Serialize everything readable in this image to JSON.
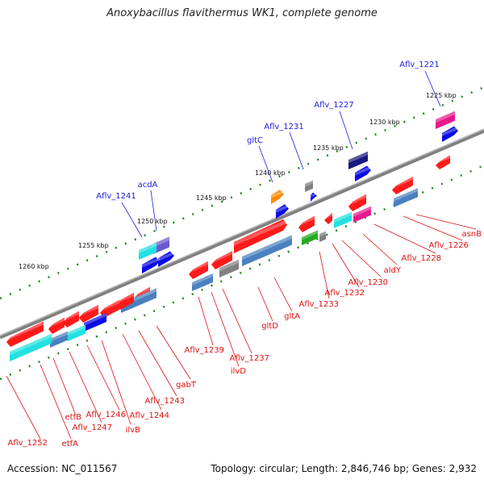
{
  "title": "Anoxybacillus flavithermus WK1, complete genome",
  "footer": {
    "accession": "Accession: NC_011567",
    "topology": "Topology: circular; Length: 2,846,746 bp; Genes: 2,932"
  },
  "kbp_labels": [
    {
      "text": "1225 kbp"
    },
    {
      "text": "1230 kbp"
    },
    {
      "text": "1235 kbp"
    },
    {
      "text": "1240 kbp"
    },
    {
      "text": "1245 kbp"
    },
    {
      "text": "1250 kbp"
    },
    {
      "text": "1255 kbp"
    },
    {
      "text": "1260 kbp"
    }
  ],
  "outer_genes": [
    {
      "name": "Aflv_1221",
      "color": "#1a1ae6"
    },
    {
      "name": "Aflv_1227",
      "color": "#1a1ae6"
    },
    {
      "name": "Aflv_1231",
      "color": "#1a1ae6"
    },
    {
      "name": "gltC",
      "color": "#1a1ae6"
    },
    {
      "name": "acdA",
      "color": "#1a1ae6"
    },
    {
      "name": "Aflv_1241",
      "color": "#1a1ae6"
    }
  ],
  "inner_genes": [
    {
      "name": "asnB"
    },
    {
      "name": "Aflv_1226"
    },
    {
      "name": "Aflv_1228"
    },
    {
      "name": "aldY"
    },
    {
      "name": "Aflv_1230"
    },
    {
      "name": "Aflv_1232"
    },
    {
      "name": "Aflv_1233"
    },
    {
      "name": "gltA"
    },
    {
      "name": "gltD"
    },
    {
      "name": "Aflv_1237"
    },
    {
      "name": "ilvD"
    },
    {
      "name": "Aflv_1239"
    },
    {
      "name": "gabT"
    },
    {
      "name": "Aflv_1243"
    },
    {
      "name": "Aflv_1244"
    },
    {
      "name": "ilvB"
    },
    {
      "name": "Aflv_1246"
    },
    {
      "name": "Aflv_1247"
    },
    {
      "name": "etfB"
    },
    {
      "name": "etfA"
    },
    {
      "name": "Aflv_1252"
    }
  ],
  "colors": {
    "backbone": "#808080",
    "tick_dots": "#228822",
    "gene_red": "#ff1a1a",
    "gene_blue": "#0a0ae6",
    "gene_navy": "#1a1a80",
    "gene_cyan": "#22e0e0",
    "gene_steel": "#4a80c0",
    "gene_magenta": "#e61a8c",
    "gene_orange": "#ff8c00",
    "gene_green": "#22aa22",
    "gene_gray": "#808080",
    "gene_purple": "#6a5acd"
  }
}
